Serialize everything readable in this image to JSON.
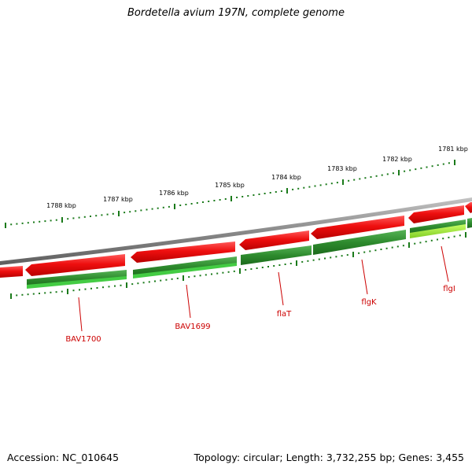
{
  "title": "Bordetella avium 197N, complete genome",
  "footer": {
    "accession": "Accession: NC_010645",
    "summary": "Topology: circular; Length: 3,732,255 bp; Genes: 3,455"
  },
  "ruler": {
    "tick_labels": [
      "1781 kbp",
      "1782 kbp",
      "1783 kbp",
      "1784 kbp",
      "1785 kbp",
      "1786 kbp",
      "1787 kbp",
      "1788 kbp"
    ]
  },
  "gene_labels": [
    "flgI",
    "flgK",
    "flaT",
    "BAV1699",
    "BAV1700"
  ],
  "colors": {
    "forward_cds": "#ee1111",
    "reverse_cds": "#2e8b2e",
    "reverse_cds_light": "#88ee33",
    "backbone": "#8a8a8a",
    "ruler_ticks": "#1a7a1a",
    "gene_label": "#cc0000"
  }
}
